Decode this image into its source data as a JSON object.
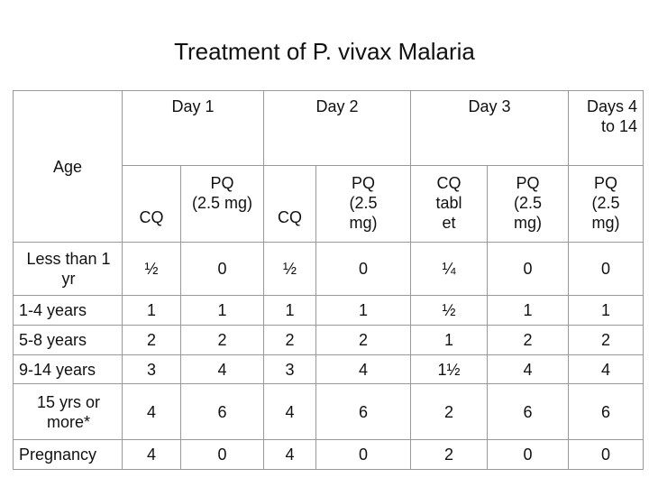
{
  "title": "Treatment of  P. vivax Malaria",
  "table": {
    "age_header": "Age",
    "day_headers": [
      "Day 1",
      "Day 2",
      "Day 3",
      "Days 4 to 14"
    ],
    "sub_headers": [
      [
        "CQ"
      ],
      [
        "PQ",
        "(2.5 mg)"
      ],
      [
        "CQ"
      ],
      [
        "PQ",
        "(2.5",
        "mg)"
      ],
      [
        "CQ",
        "tabl",
        "et"
      ],
      [
        "PQ",
        "(2.5",
        "mg)"
      ],
      [
        "PQ",
        "(2.5",
        "mg)"
      ]
    ],
    "rows": [
      [
        "Less than 1 yr",
        "½",
        "0",
        "½",
        "0",
        "¼",
        "0",
        "0"
      ],
      [
        "1-4 years",
        "1",
        "1",
        "1",
        "1",
        "½",
        "1",
        "1"
      ],
      [
        "5-8 years",
        "2",
        "2",
        "2",
        "2",
        "1",
        "2",
        "2"
      ],
      [
        "9-14 years",
        "3",
        "4",
        "3",
        "4",
        "1½",
        "4",
        "4"
      ],
      [
        "15 yrs or more*",
        "4",
        "6",
        "4",
        "6",
        "2",
        "6",
        "6"
      ],
      [
        "Pregnancy",
        "4",
        "0",
        "4",
        "0",
        "2",
        "0",
        "0"
      ]
    ]
  }
}
